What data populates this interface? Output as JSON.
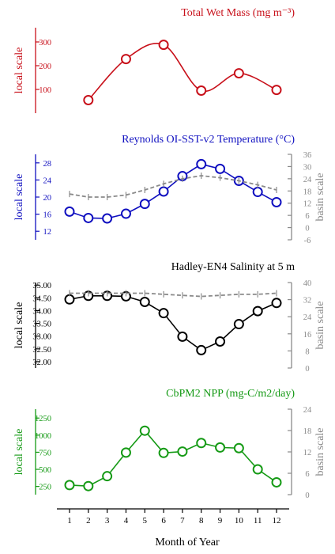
{
  "colors": {
    "mass": "#c8101a",
    "sst": "#1010c0",
    "sal": "#000000",
    "npp": "#159a15",
    "basin": "#8a8a8a",
    "axis": "#000000"
  },
  "x_axis": {
    "label": "Month of Year",
    "ticks": [
      "1",
      "2",
      "3",
      "4",
      "5",
      "6",
      "7",
      "8",
      "9",
      "10",
      "11",
      "12"
    ]
  },
  "chart_data": [
    {
      "type": "line",
      "title": "Total Wet Mass (mg m⁻³)",
      "ylabel": "local scale",
      "ylim": [
        0,
        360
      ],
      "yticks": [
        "100",
        "200",
        "300"
      ],
      "x": [
        1,
        2,
        3,
        4,
        5,
        6,
        7,
        8,
        9,
        10,
        11,
        12
      ],
      "series": [
        {
          "style": "smooth",
          "points": [
            [
              2,
              55
            ],
            [
              4,
              228
            ],
            [
              6,
              288
            ],
            [
              8,
              95
            ],
            [
              10,
              168
            ],
            [
              12,
              98
            ]
          ]
        }
      ]
    },
    {
      "type": "line",
      "title": "Reynolds OI-SST-v2 Temperature (°C)",
      "ylabel": "local scale",
      "ylabel_right": "basin scale",
      "ylim": [
        10,
        30
      ],
      "ylim_right": [
        -6,
        36
      ],
      "yticks": [
        "12",
        "16",
        "20",
        "24",
        "28"
      ],
      "yticks_right": [
        "-6",
        "0",
        "6",
        "12",
        "18",
        "24",
        "30",
        "36"
      ],
      "x": [
        1,
        2,
        3,
        4,
        5,
        6,
        7,
        8,
        9,
        10,
        11,
        12
      ],
      "series": [
        {
          "axis": "local",
          "values": [
            16.6,
            15.1,
            15.0,
            16.1,
            18.4,
            21.3,
            24.9,
            27.7,
            26.6,
            23.8,
            21.2,
            18.8
          ]
        },
        {
          "axis": "basin",
          "style": "dashed",
          "values": [
            16.5,
            15.0,
            15.0,
            16.0,
            18.5,
            21.5,
            24.0,
            25.5,
            24.5,
            23.0,
            21.0,
            18.5
          ]
        }
      ]
    },
    {
      "type": "line",
      "title": "Hadley-EN4 Salinity at 5 m",
      "ylabel": "local scale",
      "ylabel_right": "basin scale",
      "ylim": [
        31.75,
        35.1
      ],
      "ylim_right": [
        0,
        40
      ],
      "yticks": [
        "32.00",
        "32.50",
        "33.00",
        "33.50",
        "34.00",
        "34.50",
        "35.00"
      ],
      "yticks_right": [
        "0",
        "8",
        "16",
        "24",
        "32",
        "40"
      ],
      "x": [
        1,
        2,
        3,
        4,
        5,
        6,
        7,
        8,
        9,
        10,
        11,
        12
      ],
      "series": [
        {
          "axis": "local",
          "values": [
            34.44,
            34.58,
            34.58,
            34.56,
            34.34,
            33.9,
            32.98,
            32.45,
            32.79,
            33.47,
            33.98,
            34.3
          ]
        },
        {
          "axis": "basin",
          "style": "dashed",
          "values": [
            35.0,
            35.0,
            35.0,
            35.0,
            35.0,
            34.5,
            34.0,
            33.5,
            34.0,
            34.5,
            34.5,
            35.0
          ]
        }
      ]
    },
    {
      "type": "line",
      "title": "CbPM2 NPP (mg-C/m2/day)",
      "ylabel": "local scale",
      "ylabel_right": "basin scale",
      "ylim": [
        130,
        1380
      ],
      "ylim_right": [
        0,
        24
      ],
      "yticks": [
        "250",
        "500",
        "750",
        "1000",
        "1250"
      ],
      "yticks_right": [
        "0",
        "6",
        "12",
        "18",
        "24"
      ],
      "x": [
        1,
        2,
        3,
        4,
        5,
        6,
        7,
        8,
        9,
        10,
        11,
        12
      ],
      "series": [
        {
          "axis": "local",
          "values": [
            270,
            255,
            400,
            745,
            1065,
            740,
            760,
            885,
            820,
            810,
            500,
            310
          ]
        }
      ]
    }
  ]
}
